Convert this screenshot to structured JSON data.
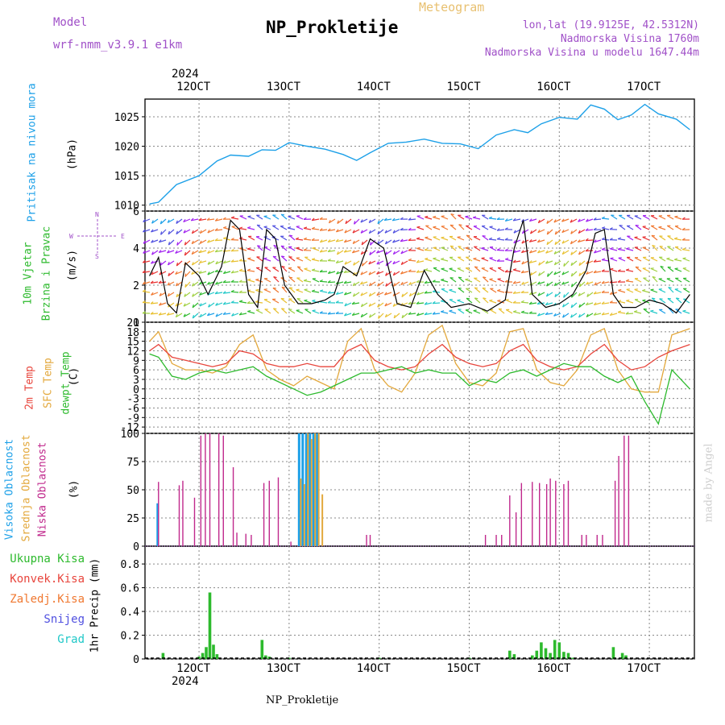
{
  "header": {
    "model_label": "Model",
    "model_name": "wrf-nmm_v3.9.1 e1km",
    "chart_kind": "Meteogram",
    "station_title": "NP_Prokletije",
    "lonlat": "lon,lat (19.9125E, 42.5312N)",
    "elevation": "Nadmorska Visina 1760m",
    "model_elevation": "Nadmorska Visina u modelu 1647.44m",
    "credit": "made by Angel",
    "footer": "NP_Prokletije"
  },
  "colors": {
    "pressure": "#1ca0e8",
    "temp2m": "#e8453c",
    "sfctemp": "#e3a83c",
    "dewpt": "#2dba2d",
    "wind_speed": "#000000",
    "gust": "#ff2020",
    "cloud_high": "#1ca0e8",
    "cloud_mid": "#e3a83c",
    "cloud_low": "#c0288c",
    "precip_total": "#2dba2d",
    "label_purple": "#a050c8"
  },
  "chart_data": [
    {
      "type": "line",
      "panel": "pressure",
      "ylabel": [
        "Pritisak na nivou mora",
        "(hPa)"
      ],
      "xlabel_top": {
        "year": "2024",
        "ticks": [
          "12OCT",
          "13OCT",
          "14OCT",
          "15OCT",
          "16OCT",
          "17OCT"
        ]
      },
      "xlabel_bottom": {
        "year": "2024",
        "ticks": [
          "12OCT",
          "13OCT",
          "14OCT",
          "15OCT",
          "16OCT",
          "17OCT"
        ]
      },
      "ylim": [
        1009,
        1028
      ],
      "yticks": [
        1010,
        1015,
        1020,
        1025
      ],
      "x_days": [
        11.45,
        11.55,
        11.75,
        12.0,
        12.2,
        12.35,
        12.55,
        12.7,
        12.85,
        13.0,
        13.2,
        13.4,
        13.6,
        13.75,
        13.9,
        14.1,
        14.3,
        14.5,
        14.7,
        14.9,
        15.1,
        15.3,
        15.5,
        15.65,
        15.8,
        16.0,
        16.2,
        16.35,
        16.5,
        16.65,
        16.8,
        16.95,
        17.1,
        17.3,
        17.45
      ],
      "series": [
        {
          "name": "",
          "values": [
            1010.2,
            1010.5,
            1013.5,
            1015.0,
            1017.5,
            1018.5,
            1018.3,
            1019.4,
            1019.3,
            1020.6,
            1020.0,
            1019.5,
            1018.6,
            1017.6,
            1018.9,
            1020.5,
            1020.7,
            1021.2,
            1020.5,
            1020.4,
            1019.6,
            1021.9,
            1022.8,
            1022.3,
            1023.8,
            1024.9,
            1024.6,
            1027.0,
            1026.3,
            1024.5,
            1025.3,
            1027.1,
            1025.5,
            1024.6,
            1022.8
          ]
        }
      ]
    },
    {
      "type": "line",
      "panel": "wind",
      "ylabel": [
        "10m Vjetar",
        "Brzina i Pravac",
        "(m/s)"
      ],
      "compass": {
        "n": "N",
        "s": "S",
        "w": "W",
        "e": "E"
      },
      "ylim": [
        0,
        6
      ],
      "yticks": [
        0,
        2,
        4,
        6
      ],
      "x_days": [
        11.45,
        11.55,
        11.65,
        11.75,
        11.85,
        12.0,
        12.1,
        12.25,
        12.35,
        12.45,
        12.55,
        12.65,
        12.75,
        12.85,
        12.95,
        13.1,
        13.25,
        13.4,
        13.5,
        13.6,
        13.75,
        13.9,
        14.05,
        14.2,
        14.35,
        14.5,
        14.65,
        14.8,
        15.0,
        15.2,
        15.4,
        15.5,
        15.6,
        15.7,
        15.85,
        16.0,
        16.15,
        16.3,
        16.4,
        16.5,
        16.6,
        16.7,
        16.85,
        17.0,
        17.15,
        17.3,
        17.45
      ],
      "series": [
        {
          "name": "",
          "values": [
            2.5,
            3.5,
            1.0,
            0.5,
            3.2,
            2.5,
            1.5,
            3.0,
            5.5,
            5.0,
            1.5,
            0.8,
            5.0,
            4.5,
            2.0,
            1.0,
            1.0,
            1.2,
            1.5,
            3.0,
            2.5,
            4.5,
            4.0,
            1.0,
            0.8,
            2.8,
            1.5,
            0.8,
            1.0,
            0.6,
            1.2,
            4.0,
            5.5,
            1.5,
            0.8,
            1.0,
            1.5,
            2.8,
            4.8,
            5.0,
            1.5,
            0.8,
            0.8,
            1.2,
            1.0,
            0.5,
            1.5
          ]
        }
      ]
    },
    {
      "type": "line",
      "panel": "temperature",
      "ylabel": [
        "2m Temp",
        "SFC Temp",
        "dewpt Temp",
        "(C)"
      ],
      "ylim": [
        -14,
        21
      ],
      "yticks": [
        -12,
        -9,
        -6,
        -3,
        0,
        3,
        6,
        9,
        12,
        15,
        18,
        21
      ],
      "x_days": [
        11.45,
        11.55,
        11.7,
        11.85,
        12.0,
        12.15,
        12.3,
        12.45,
        12.6,
        12.75,
        12.9,
        13.05,
        13.2,
        13.35,
        13.5,
        13.65,
        13.8,
        13.95,
        14.1,
        14.25,
        14.4,
        14.55,
        14.7,
        14.85,
        15.0,
        15.15,
        15.3,
        15.45,
        15.6,
        15.75,
        15.9,
        16.05,
        16.2,
        16.35,
        16.5,
        16.65,
        16.8,
        16.95,
        17.1,
        17.25,
        17.45
      ],
      "series": [
        {
          "name": "",
          "values": [
            12,
            14,
            10,
            9,
            8,
            7,
            8,
            12,
            11,
            8,
            7,
            7,
            8,
            7,
            7,
            12,
            14,
            9,
            7,
            6,
            7,
            11,
            14,
            10,
            8,
            7,
            8,
            12,
            14,
            9,
            7,
            6,
            7,
            11,
            14,
            9,
            6,
            7,
            10,
            12,
            14
          ]
        },
        {
          "name": "",
          "values": [
            15,
            18,
            8,
            6,
            6,
            5,
            7,
            14,
            17,
            6,
            3,
            1,
            4,
            2,
            0,
            15,
            19,
            6,
            1,
            -1,
            5,
            17,
            20,
            8,
            2,
            1,
            5,
            18,
            19,
            6,
            2,
            1,
            6,
            17,
            19,
            6,
            0,
            -1,
            -1,
            17,
            19
          ]
        },
        {
          "name": "",
          "values": [
            11,
            10,
            4,
            3,
            5,
            6,
            5,
            6,
            7,
            4,
            2,
            0,
            -2,
            -1,
            1,
            3,
            5,
            5,
            6,
            7,
            5,
            6,
            5,
            5,
            1,
            3,
            2,
            5,
            6,
            4,
            6,
            8,
            7,
            7,
            4,
            2,
            4,
            -4,
            -11,
            6,
            0
          ]
        }
      ]
    },
    {
      "type": "bar",
      "panel": "clouds",
      "ylabel": [
        "Visoka Oblacnost",
        "Srednja Oblacnost",
        "Niska Oblacnost",
        "(%)"
      ],
      "ylim": [
        0,
        100
      ],
      "yticks": [
        0,
        25,
        50,
        75,
        100
      ],
      "x_days": [
        11.55,
        11.6,
        11.78,
        11.82,
        11.95,
        12.02,
        12.07,
        12.12,
        12.22,
        12.27,
        12.38,
        12.42,
        12.52,
        12.58,
        12.72,
        12.78,
        12.88,
        13.02,
        13.12,
        13.16,
        13.2,
        13.24,
        13.28,
        13.32,
        13.36,
        13.86,
        13.9,
        15.18,
        15.3,
        15.36,
        15.45,
        15.52,
        15.58,
        15.7,
        15.78,
        15.86,
        15.9,
        15.96,
        16.05,
        16.1,
        16.25,
        16.3,
        16.42,
        16.48,
        16.62,
        16.66,
        16.72,
        16.77
      ],
      "series": [
        {
          "name": "",
          "values": [
            38,
            0,
            0,
            0,
            0,
            0,
            0,
            0,
            0,
            0,
            0,
            0,
            0,
            0,
            0,
            0,
            0,
            0,
            100,
            100,
            100,
            100,
            100,
            100,
            0,
            0,
            0,
            0,
            0,
            0,
            0,
            0,
            0,
            0,
            0,
            0,
            0,
            0,
            0,
            0,
            0,
            0,
            0,
            0,
            0,
            0,
            0,
            0
          ]
        },
        {
          "name": "",
          "values": [
            0,
            0,
            0,
            0,
            0,
            0,
            0,
            0,
            0,
            0,
            0,
            0,
            0,
            0,
            0,
            0,
            0,
            0,
            60,
            55,
            100,
            95,
            100,
            100,
            46,
            0,
            0,
            0,
            0,
            0,
            0,
            0,
            0,
            0,
            0,
            0,
            0,
            0,
            0,
            0,
            0,
            0,
            0,
            0,
            0,
            0,
            0,
            0
          ]
        },
        {
          "name": "",
          "values": [
            57,
            0,
            54,
            58,
            43,
            98,
            100,
            100,
            100,
            98,
            70,
            12,
            11,
            10,
            56,
            58,
            61,
            4,
            0,
            0,
            0,
            0,
            0,
            0,
            0,
            10,
            10,
            10,
            10,
            10,
            45,
            30,
            56,
            57,
            56,
            55,
            60,
            58,
            55,
            58,
            10,
            10,
            10,
            10,
            58,
            80,
            98,
            98
          ]
        }
      ]
    },
    {
      "type": "bar",
      "panel": "precipitation",
      "ylabel": [
        "1hr Precip (mm)"
      ],
      "legend": [
        "Ukupna Kisa",
        "Konvek.Kisa",
        "Zaledj.Kisa",
        "Snijeg",
        "Grad"
      ],
      "ylim": [
        0,
        0.95
      ],
      "yticks": [
        0,
        0.2,
        0.4,
        0.6,
        0.8
      ],
      "ytick_labels": [
        "0",
        "0.2",
        "0.4",
        "0.6",
        "0.8"
      ],
      "x_days": [
        11.6,
        12.0,
        12.04,
        12.08,
        12.12,
        12.16,
        12.2,
        12.7,
        12.74,
        12.78,
        13.0,
        14.0,
        15.0,
        15.45,
        15.5,
        15.7,
        15.75,
        15.8,
        15.85,
        15.9,
        15.95,
        16.0,
        16.05,
        16.1,
        16.15,
        16.6,
        16.7,
        16.74
      ],
      "series": [
        {
          "name": "",
          "values": [
            0.05,
            0.02,
            0.05,
            0.1,
            0.56,
            0.12,
            0.04,
            0.16,
            0.03,
            0.02,
            0.01,
            0.01,
            0.01,
            0.07,
            0.04,
            0.03,
            0.07,
            0.14,
            0.09,
            0.05,
            0.16,
            0.14,
            0.06,
            0.05,
            0.01,
            0.1,
            0.05,
            0.03
          ]
        }
      ]
    }
  ]
}
